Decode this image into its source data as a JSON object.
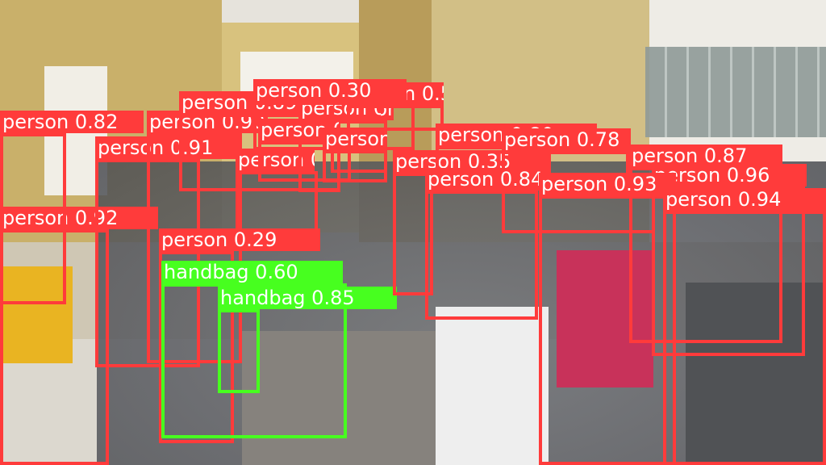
{
  "colors": {
    "person": "#ff3b3b",
    "handbag": "#47ff1f",
    "label_text": "#ffffff"
  },
  "detections": [
    {
      "label": "person 0.92",
      "cls": "person",
      "conf": 0.92
    },
    {
      "label": "person 0.82",
      "cls": "person",
      "conf": 0.82
    },
    {
      "label": "person 0.91",
      "cls": "person",
      "conf": 0.91
    },
    {
      "label": "person 0.90",
      "cls": "person",
      "conf": 0.9
    },
    {
      "label": "person 0.89",
      "cls": "person",
      "conf": 0.89
    },
    {
      "label": "person 0.86",
      "cls": "person",
      "conf": 0.86
    },
    {
      "label": "person 0.86",
      "cls": "person",
      "conf": 0.86
    },
    {
      "label": "person 0.82",
      "cls": "person",
      "conf": 0.82
    },
    {
      "label": "person 0.58",
      "cls": "person",
      "conf": 0.58
    },
    {
      "label": "person 0.30",
      "cls": "person",
      "conf": 0.3
    },
    {
      "label": "person 0.49",
      "cls": "person",
      "conf": 0.49
    },
    {
      "label": "person 0.46",
      "cls": "person",
      "conf": 0.46
    },
    {
      "label": "person 0.29",
      "cls": "person",
      "conf": 0.29
    },
    {
      "label": "handbag 0.60",
      "cls": "handbag",
      "conf": 0.6
    },
    {
      "label": "handbag 0.85",
      "cls": "handbag",
      "conf": 0.85
    },
    {
      "label": "person 0.35",
      "cls": "person",
      "conf": 0.35
    },
    {
      "label": "person 0.80",
      "cls": "person",
      "conf": 0.8
    },
    {
      "label": "person 0.78",
      "cls": "person",
      "conf": 0.78
    },
    {
      "label": "person 0.84",
      "cls": "person",
      "conf": 0.84
    },
    {
      "label": "person 0.87",
      "cls": "person",
      "conf": 0.87
    },
    {
      "label": "person 0.96",
      "cls": "person",
      "conf": 0.96
    },
    {
      "label": "person 0.93",
      "cls": "person",
      "conf": 0.93
    },
    {
      "label": "person 0.94",
      "cls": "person",
      "conf": 0.94
    }
  ]
}
